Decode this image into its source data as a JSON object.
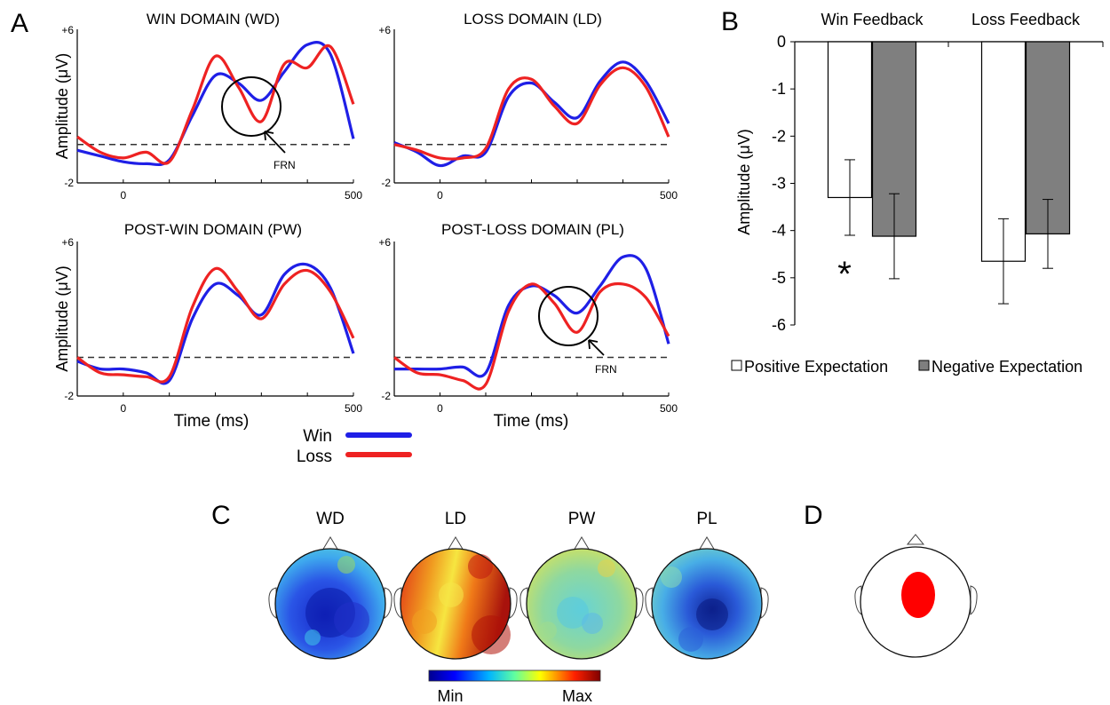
{
  "panel_letters": {
    "a": "A",
    "b": "B",
    "c": "C",
    "d": "D"
  },
  "colors": {
    "win": "#1f1fe6",
    "loss": "#ee2222",
    "bar_positive": "#ffffff",
    "bar_negative": "#7f7f7f",
    "source": "#ff0000"
  },
  "chart_data": [
    {
      "type": "line",
      "panel": "A",
      "x_unit_label": "Time (ms)",
      "ylabel": "Amplitude (μV)",
      "xlim": [
        -100,
        500
      ],
      "ylim": [
        -2,
        6
      ],
      "x_ticks": [
        0,
        500
      ],
      "y_tick_labels": [
        "+6",
        "-2"
      ],
      "baseline": 0,
      "annotation": "FRN",
      "legend": [
        "Win",
        "Loss"
      ],
      "subplots": [
        {
          "title": "WIN DOMAIN (WD)",
          "x": [
            -100,
            -50,
            0,
            50,
            100,
            150,
            200,
            250,
            300,
            350,
            400,
            450,
            500
          ],
          "series": [
            {
              "name": "Win",
              "values": [
                -0.3,
                -0.6,
                -0.9,
                -1.0,
                -0.8,
                1.5,
                3.6,
                3.2,
                2.3,
                3.8,
                5.2,
                4.7,
                0.3
              ]
            },
            {
              "name": "Loss",
              "values": [
                0.4,
                -0.4,
                -0.7,
                -0.4,
                -0.9,
                1.8,
                4.6,
                3.0,
                1.2,
                4.2,
                4.0,
                5.1,
                2.1
              ]
            }
          ]
        },
        {
          "title": "LOSS DOMAIN (LD)",
          "x": [
            -100,
            -50,
            0,
            50,
            100,
            150,
            200,
            250,
            300,
            350,
            400,
            450,
            500
          ],
          "series": [
            {
              "name": "Win",
              "values": [
                0.1,
                -0.4,
                -1.1,
                -0.6,
                -0.4,
                2.5,
                3.2,
                2.2,
                1.4,
                3.3,
                4.3,
                3.3,
                1.1
              ]
            },
            {
              "name": "Loss",
              "values": [
                0.0,
                -0.3,
                -0.7,
                -0.7,
                -0.2,
                2.9,
                3.4,
                2.0,
                1.1,
                3.1,
                4.0,
                3.0,
                0.4
              ]
            }
          ]
        },
        {
          "title": "POST-WIN DOMAIN (PW)",
          "x": [
            -100,
            -50,
            0,
            50,
            100,
            150,
            200,
            250,
            300,
            350,
            400,
            450,
            500
          ],
          "series": [
            {
              "name": "Win",
              "values": [
                -0.2,
                -0.6,
                -0.6,
                -0.8,
                -1.2,
                2.0,
                3.8,
                3.2,
                2.2,
                4.3,
                4.8,
                3.6,
                0.2
              ]
            },
            {
              "name": "Loss",
              "values": [
                0.0,
                -0.8,
                -0.9,
                -1.0,
                -1.0,
                2.6,
                4.6,
                3.4,
                2.0,
                3.8,
                4.5,
                3.4,
                1.0
              ]
            }
          ]
        },
        {
          "title": "POST-LOSS DOMAIN (PL)",
          "x": [
            -100,
            -50,
            0,
            50,
            100,
            150,
            200,
            250,
            300,
            350,
            400,
            450,
            500
          ],
          "series": [
            {
              "name": "Win",
              "values": [
                -0.6,
                -0.6,
                -0.6,
                -0.5,
                -0.8,
                2.7,
                3.7,
                3.2,
                2.3,
                3.7,
                5.2,
                4.6,
                0.7
              ]
            },
            {
              "name": "Loss",
              "values": [
                0.0,
                -0.8,
                -0.9,
                -1.2,
                -1.4,
                2.4,
                3.8,
                2.8,
                1.3,
                3.4,
                3.8,
                3.1,
                1.1
              ]
            }
          ]
        }
      ]
    },
    {
      "type": "bar",
      "panel": "B",
      "categories": [
        "Win Feedback",
        "Loss Feedback"
      ],
      "ylabel": "Amplitude (μV)",
      "ylim": [
        -6,
        0
      ],
      "y_ticks": [
        0,
        -1,
        -2,
        -3,
        -4,
        -5,
        -6
      ],
      "series": [
        {
          "name": "Positive Expectation",
          "values": [
            -3.3,
            -4.65
          ],
          "error": [
            0.8,
            0.9
          ]
        },
        {
          "name": "Negative Expectation",
          "values": [
            -4.12,
            -4.07
          ],
          "error": [
            0.9,
            0.73
          ]
        }
      ],
      "annotation": "*",
      "legend_position": "bottom"
    },
    {
      "type": "heatmap",
      "panel": "C",
      "maps": [
        "WD",
        "LD",
        "PW",
        "PL"
      ],
      "colorbar_min": "Min",
      "colorbar_max": "Max"
    }
  ]
}
